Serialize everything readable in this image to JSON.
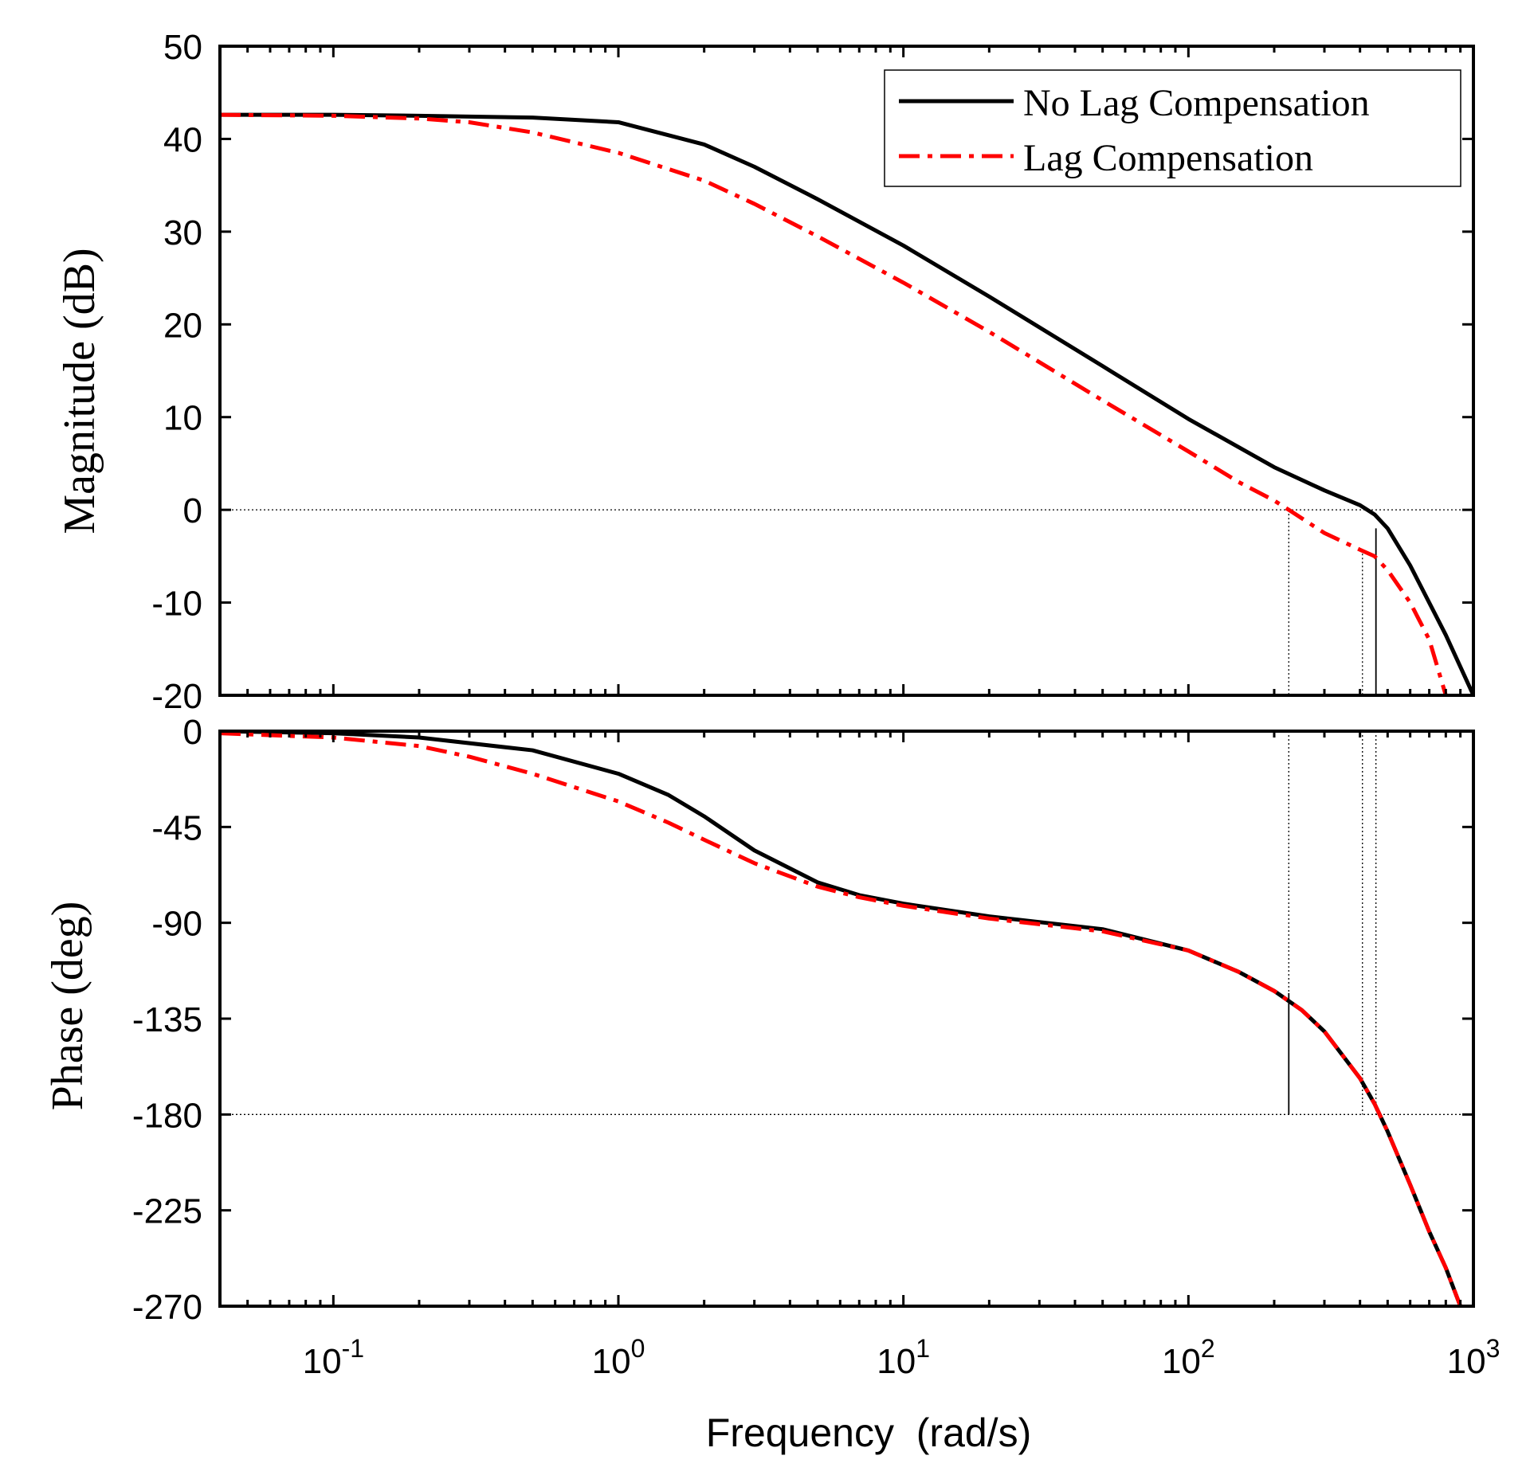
{
  "chart_data": [
    {
      "type": "line",
      "panel": "magnitude",
      "ylabel": "Magnitude (dB)",
      "xscale": "log",
      "xlim": [
        0.04,
        1000
      ],
      "ylim": [
        -20,
        50
      ],
      "yticks": [
        50,
        40,
        30,
        20,
        10,
        0,
        -10,
        -20
      ],
      "reference_line": 0,
      "crossover_markers": [
        {
          "x": 225,
          "y_from": 0,
          "y_to": -20,
          "style": "dotted"
        },
        {
          "x": 408,
          "y_from": -4.3,
          "y_to": -20,
          "style": "dotted"
        },
        {
          "x": 455,
          "y_from": -2,
          "y_to": -20,
          "style": "solid"
        }
      ],
      "series": [
        {
          "name": "No Lag Compensation",
          "color": "#000000",
          "style": "solid",
          "x": [
            0.04,
            0.1,
            0.2,
            0.5,
            1,
            2,
            3,
            5,
            10,
            20,
            50,
            100,
            200,
            300,
            400,
            450,
            500,
            600,
            800,
            1000
          ],
          "values": [
            42.6,
            42.6,
            42.5,
            42.3,
            41.8,
            39.4,
            37.0,
            33.5,
            28.5,
            23.0,
            15.5,
            9.8,
            4.6,
            2.1,
            0.5,
            -0.5,
            -2.0,
            -6.0,
            -13.5,
            -20.0
          ]
        },
        {
          "name": "Lag Compensation",
          "color": "#ff0000",
          "style": "dash-dot",
          "x": [
            0.04,
            0.1,
            0.2,
            0.3,
            0.5,
            1,
            2,
            3,
            5,
            10,
            20,
            50,
            100,
            150,
            200,
            225,
            300,
            400,
            450,
            500,
            600,
            700,
            800
          ],
          "values": [
            42.6,
            42.5,
            42.2,
            41.8,
            40.7,
            38.5,
            35.5,
            33.0,
            29.5,
            24.5,
            19.2,
            11.8,
            6.3,
            3.0,
            1.0,
            0.0,
            -2.5,
            -4.3,
            -5.0,
            -6.5,
            -10.0,
            -14.0,
            -20.0
          ]
        }
      ],
      "legend": {
        "entries": [
          "No Lag Compensation",
          "Lag Compensation"
        ],
        "location": "top-right"
      }
    },
    {
      "type": "line",
      "panel": "phase",
      "ylabel": "Phase (deg)",
      "xlabel": "Frequency  (rad/s)",
      "xscale": "log",
      "xlim": [
        0.04,
        1000
      ],
      "ylim": [
        -270,
        0
      ],
      "yticks": [
        0,
        -45,
        -90,
        -135,
        -180,
        -225,
        -270
      ],
      "xticks": [
        {
          "base": "10",
          "exp": "-1",
          "value": 0.1
        },
        {
          "base": "10",
          "exp": "0",
          "value": 1
        },
        {
          "base": "10",
          "exp": "1",
          "value": 10
        },
        {
          "base": "10",
          "exp": "2",
          "value": 100
        },
        {
          "base": "10",
          "exp": "3",
          "value": 1000
        }
      ],
      "reference_line": -180,
      "crossover_markers": [
        {
          "x": 225,
          "y_from": 0,
          "y_to": -123,
          "style": "dotted"
        },
        {
          "x": 225,
          "y_from": -123,
          "y_to": -180,
          "style": "solid"
        },
        {
          "x": 408,
          "y_from": 0,
          "y_to": -180,
          "style": "dotted"
        },
        {
          "x": 455,
          "y_from": 0,
          "y_to": -180,
          "style": "dotted"
        }
      ],
      "series": [
        {
          "name": "No Lag Compensation",
          "color": "#000000",
          "style": "solid",
          "x": [
            0.04,
            0.1,
            0.2,
            0.5,
            1,
            1.5,
            2,
            3,
            5,
            7,
            10,
            20,
            50,
            100,
            150,
            200,
            250,
            300,
            400,
            450,
            500,
            600,
            700,
            800,
            900
          ],
          "values": [
            0,
            -1,
            -3,
            -9,
            -20,
            -30,
            -40,
            -56,
            -71,
            -77,
            -81,
            -87,
            -93,
            -103,
            -113,
            -122,
            -131,
            -141,
            -163,
            -175,
            -188,
            -213,
            -235,
            -252,
            -270
          ]
        },
        {
          "name": "Lag Compensation",
          "color": "#ff0000",
          "style": "dash-dot",
          "x": [
            0.04,
            0.1,
            0.2,
            0.3,
            0.5,
            1,
            1.5,
            2,
            3,
            5,
            7,
            10,
            20,
            50,
            100,
            150,
            200,
            250,
            300,
            400,
            450,
            500,
            600,
            700,
            800,
            900
          ],
          "values": [
            -1,
            -3,
            -7,
            -12,
            -20,
            -33,
            -43,
            -51,
            -62,
            -73,
            -78,
            -82,
            -88,
            -94,
            -103,
            -113,
            -122,
            -131,
            -141,
            -163,
            -175,
            -188,
            -213,
            -235,
            -252,
            -270
          ]
        }
      ]
    }
  ]
}
